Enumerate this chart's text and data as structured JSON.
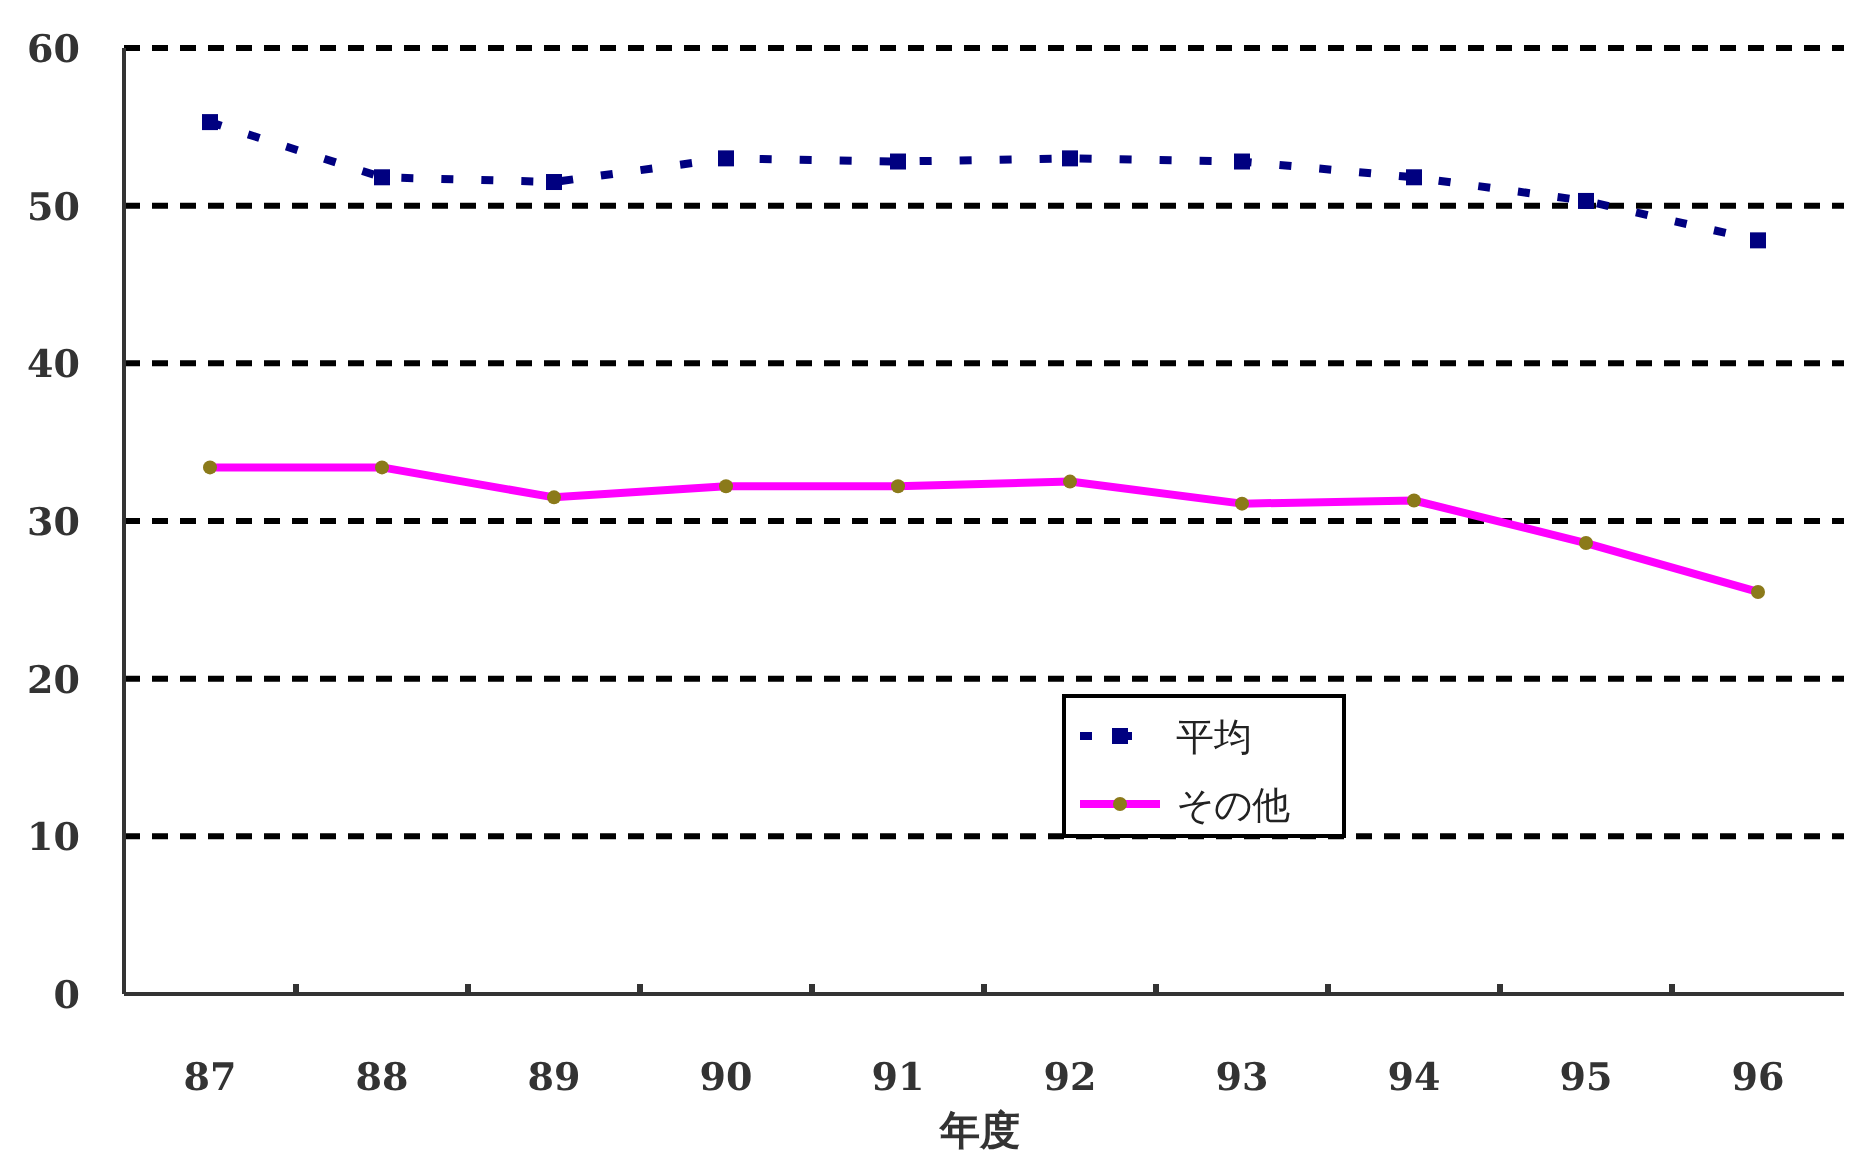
{
  "chart_data": {
    "type": "line",
    "xlabel": "年度",
    "categories": [
      "87",
      "88",
      "89",
      "90",
      "91",
      "92",
      "93",
      "94",
      "95",
      "96"
    ],
    "series": [
      {
        "name": "平均",
        "color": "#000080",
        "line_style": "dotted",
        "marker": "square",
        "values": [
          55.3,
          51.8,
          51.5,
          53.0,
          52.8,
          53.0,
          52.8,
          51.8,
          50.3,
          47.8
        ]
      },
      {
        "name": "その他",
        "color": "#ff00ff",
        "line_style": "solid",
        "marker": "circle",
        "values": [
          33.4,
          33.4,
          31.5,
          32.2,
          32.2,
          32.5,
          31.1,
          31.3,
          28.6,
          25.5
        ]
      }
    ],
    "ylim": [
      0,
      60
    ],
    "yticks": [
      0,
      10,
      20,
      30,
      40,
      50,
      60
    ],
    "grid": "y",
    "legend": "bottom"
  }
}
